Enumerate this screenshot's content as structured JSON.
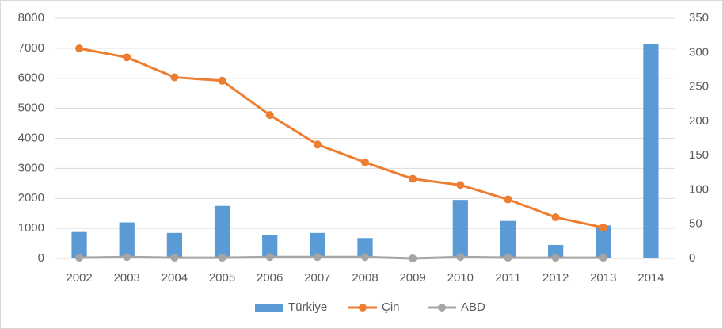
{
  "chart_data": {
    "type": "bar_line",
    "categories": [
      "2002",
      "2003",
      "2004",
      "2005",
      "2006",
      "2007",
      "2008",
      "2009",
      "2010",
      "2011",
      "2012",
      "2013",
      "2014"
    ],
    "series": [
      {
        "name": "Türkiye",
        "type": "bar",
        "color": "#5b9bd5",
        "values": [
          880,
          1200,
          850,
          1750,
          780,
          850,
          680,
          0,
          1950,
          1250,
          450,
          1100,
          7150
        ]
      },
      {
        "name": "Çin",
        "type": "line",
        "axis": "y2",
        "color": "#ed7d31",
        "values": [
          306,
          293,
          264,
          259,
          209,
          166,
          140,
          116,
          107,
          86,
          60,
          45,
          null
        ]
      },
      {
        "name": "ABD",
        "type": "line",
        "axis": "y2",
        "color": "#a5a5a5",
        "values": [
          1,
          2,
          1,
          1,
          2,
          2,
          2,
          0,
          2,
          1,
          1,
          1,
          null
        ]
      }
    ],
    "ylim": [
      0,
      8000
    ],
    "yticks": [
      0,
      1000,
      2000,
      3000,
      4000,
      5000,
      6000,
      7000,
      8000
    ],
    "y2lim": [
      0,
      350
    ],
    "y2ticks": [
      0,
      50,
      100,
      150,
      200,
      250,
      300,
      350
    ],
    "grid": true,
    "legend": "bottom"
  }
}
